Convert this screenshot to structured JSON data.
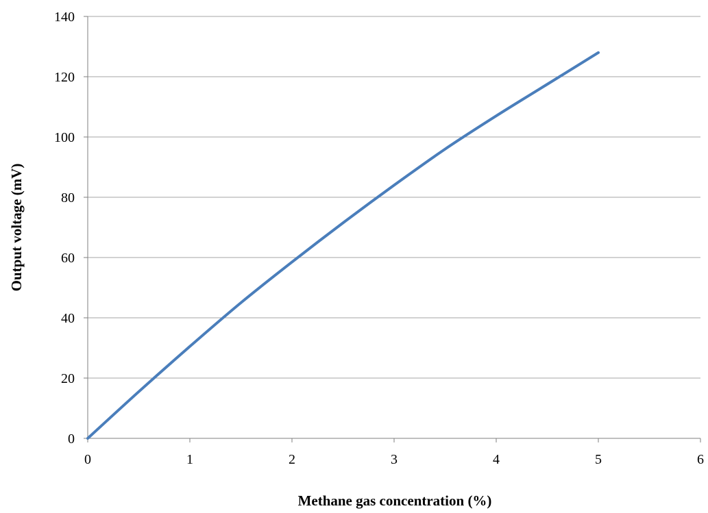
{
  "chart_data": {
    "type": "line",
    "title": "",
    "xlabel": "Methane gas concentration (%)",
    "ylabel": "Output voltage (mV)",
    "xlim": [
      0,
      6
    ],
    "ylim": [
      0,
      140
    ],
    "x_ticks": [
      "0",
      "1",
      "2",
      "3",
      "4",
      "5",
      "6"
    ],
    "y_ticks": [
      "0",
      "20",
      "40",
      "60",
      "80",
      "100",
      "120",
      "140"
    ],
    "grid": "horizontal",
    "legend": "none",
    "series": [
      {
        "color": "#4a7ebb",
        "x": [
          0,
          0.5,
          1,
          1.5,
          2,
          2.5,
          3,
          3.5,
          4,
          4.5,
          5
        ],
        "y": [
          0,
          15.5,
          30.5,
          45,
          58.5,
          71.5,
          84,
          96,
          107,
          117.5,
          128
        ]
      }
    ]
  }
}
